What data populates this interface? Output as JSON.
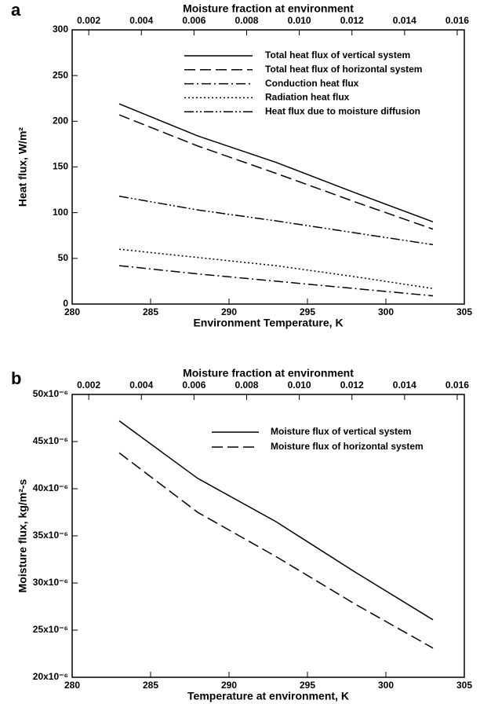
{
  "chart_data": [
    {
      "type": "line",
      "panel_label": "a",
      "x_label": "Environment Temperature, K",
      "y_label": "Heat flux, W/m²",
      "x2_label": "Moisture fraction at environment",
      "x": [
        283,
        288,
        293,
        298,
        303
      ],
      "xlim": [
        280,
        305
      ],
      "xticks": [
        280,
        285,
        290,
        295,
        300,
        305
      ],
      "ylim": [
        0,
        300
      ],
      "yticks": [
        0,
        50,
        100,
        150,
        200,
        250,
        300
      ],
      "x2lim": [
        0.00137,
        0.01627
      ],
      "x2ticks": [
        0.002,
        0.004,
        0.006,
        0.008,
        {
          "value": 0.01,
          "label": "0.010"
        },
        0.012,
        0.014,
        0.016
      ],
      "series": [
        {
          "name": "Total heat flux of vertical system",
          "color": "#000000",
          "dash": "solid",
          "values": [
            219,
            184,
            155,
            122,
            90
          ]
        },
        {
          "name": "Total heat flux of horizontal system",
          "color": "#000000",
          "dash": "dashed",
          "values": [
            207,
            173,
            143,
            112,
            82
          ]
        },
        {
          "name": "Conduction heat flux",
          "color": "#000000",
          "dash": "dashdot",
          "values": [
            42,
            33,
            25,
            17,
            9
          ]
        },
        {
          "name": "Radiation heat flux",
          "color": "#000000",
          "dash": "dotted",
          "values": [
            60,
            51,
            42,
            30,
            17
          ]
        },
        {
          "name": "Heat flux due to moisture diffusion",
          "color": "#000000",
          "dash": "dashdotdot",
          "values": [
            118,
            103,
            91,
            78,
            65
          ]
        }
      ]
    },
    {
      "type": "line",
      "panel_label": "b",
      "x_label": "Temperature at environment, K",
      "y_label": "Moisture flux, kg/m²-s",
      "x2_label": "Moisture fraction at environment",
      "x": [
        283,
        288,
        293,
        298,
        303
      ],
      "xlim": [
        280,
        305
      ],
      "xticks": [
        280,
        285,
        290,
        295,
        300,
        305
      ],
      "ylim": [
        2e-05,
        5e-05
      ],
      "yticks": [
        {
          "value": 2e-05,
          "label": "20x10⁻⁶"
        },
        {
          "value": 2.5e-05,
          "label": "25x10⁻⁶"
        },
        {
          "value": 3e-05,
          "label": "30x10⁻⁶"
        },
        {
          "value": 3.5e-05,
          "label": "35x10⁻⁶"
        },
        {
          "value": 4e-05,
          "label": "40x10⁻⁶"
        },
        {
          "value": 4.5e-05,
          "label": "45x10⁻⁶"
        },
        {
          "value": 5e-05,
          "label": "50x10⁻⁶"
        }
      ],
      "x2lim": [
        0.00137,
        0.01627
      ],
      "x2ticks": [
        0.002,
        0.004,
        0.006,
        0.008,
        {
          "value": 0.01,
          "label": "0.010"
        },
        0.012,
        0.014,
        0.016
      ],
      "series": [
        {
          "name": "Moisture flux of vertical system",
          "color": "#000000",
          "dash": "solid",
          "values": [
            4.72e-05,
            4.11e-05,
            3.65e-05,
            3.12e-05,
            2.61e-05
          ]
        },
        {
          "name": "Moisture flux of horizontal system",
          "color": "#000000",
          "dash": "dashed",
          "values": [
            4.38e-05,
            3.75e-05,
            3.28e-05,
            2.78e-05,
            2.31e-05
          ]
        }
      ]
    }
  ]
}
